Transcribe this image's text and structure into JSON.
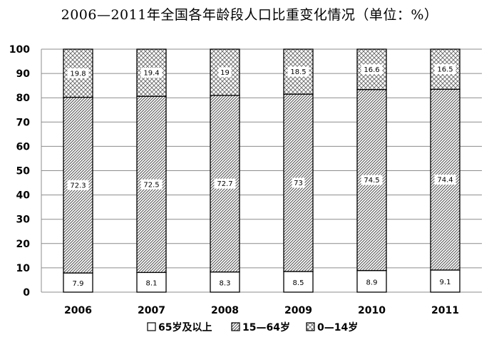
{
  "chart_data": {
    "type": "bar",
    "stacked": true,
    "title": "2006—2011年全国各年龄段人口比重变化情况（单位：%）",
    "categories": [
      "2006",
      "2007",
      "2008",
      "2009",
      "2010",
      "2011"
    ],
    "series": [
      {
        "name": "65岁及以上",
        "values": [
          7.9,
          8.1,
          8.3,
          8.5,
          8.9,
          9.1
        ],
        "pattern": "solid-white"
      },
      {
        "name": "15—64岁",
        "values": [
          72.3,
          72.5,
          72.7,
          73,
          74.5,
          74.4
        ],
        "pattern": "diagonal-hatch"
      },
      {
        "name": "0—14岁",
        "values": [
          19.8,
          19.4,
          19,
          18.5,
          16.6,
          16.5
        ],
        "pattern": "crosshatch"
      }
    ],
    "ylim": [
      0,
      100
    ],
    "yticks": [
      0,
      10,
      20,
      30,
      40,
      50,
      60,
      70,
      80,
      90,
      100
    ],
    "grid": true,
    "legend_position": "bottom",
    "colors": {
      "stroke": "#000000",
      "grid": "#8c8c8c",
      "hatch": "#555555",
      "label_box": "#ffffff"
    }
  }
}
